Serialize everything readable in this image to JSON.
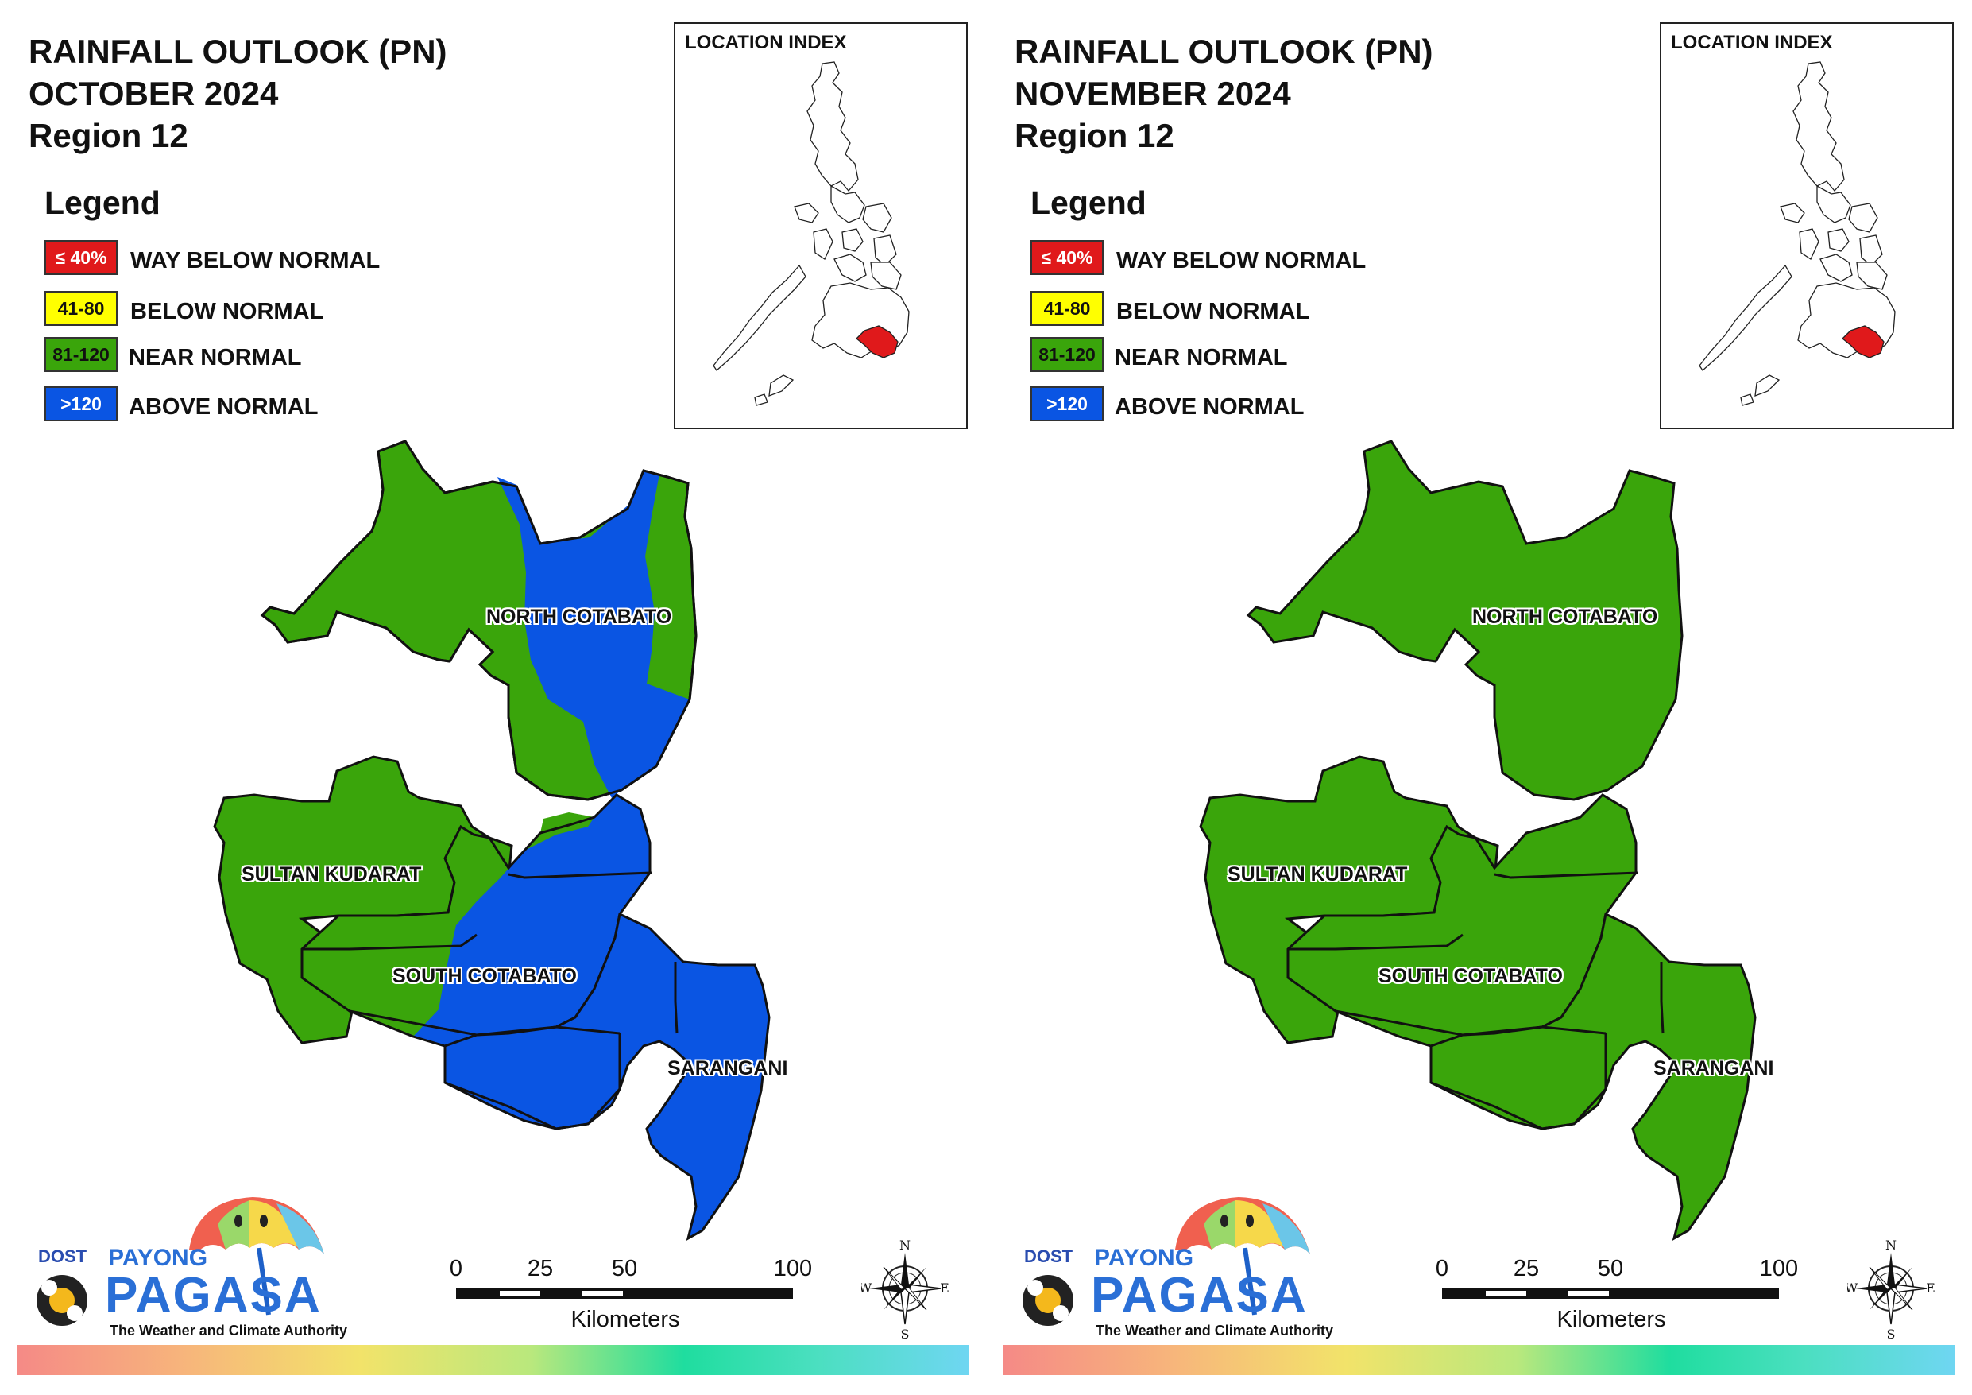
{
  "panels": [
    {
      "title_line1": "RAINFALL OUTLOOK (PN)",
      "title_line2": "OCTOBER 2024",
      "title_line3": "Region 12",
      "provinces": [
        {
          "name": "NORTH COTABATO",
          "category": "near-normal / above-normal"
        },
        {
          "name": "SULTAN KUDARAT",
          "category": "near-normal"
        },
        {
          "name": "SOUTH COTABATO",
          "category": "near-normal / above-normal"
        },
        {
          "name": "SARANGANI",
          "category": "above-normal"
        }
      ]
    },
    {
      "title_line1": "RAINFALL OUTLOOK (PN)",
      "title_line2": "NOVEMBER 2024",
      "title_line3": "Region 12",
      "provinces": [
        {
          "name": "NORTH COTABATO",
          "category": "near-normal"
        },
        {
          "name": "SULTAN KUDARAT",
          "category": "near-normal"
        },
        {
          "name": "SOUTH COTABATO",
          "category": "near-normal"
        },
        {
          "name": "SARANGANI",
          "category": "near-normal"
        }
      ]
    }
  ],
  "legend": {
    "title": "Legend",
    "items": [
      {
        "range": "≤ 40%",
        "label": "WAY BELOW NORMAL",
        "color": "#e0191b",
        "text_color": "#ffffff"
      },
      {
        "range": "41-80",
        "label": "BELOW NORMAL",
        "color": "#ffff00",
        "text_color": "#111111"
      },
      {
        "range": "81-120",
        "label": "NEAR NORMAL",
        "color": "#3aa50b",
        "text_color": "#111111"
      },
      {
        "range": ">120",
        "label": "ABOVE NORMAL",
        "color": "#0a55e3",
        "text_color": "#ffffff"
      }
    ]
  },
  "inset": {
    "title": "LOCATION INDEX",
    "highlight_color": "#e0191b"
  },
  "scale": {
    "ticks": [
      "0",
      "25",
      "50",
      "100"
    ],
    "unit": "Kilometers"
  },
  "compass": {
    "n": "N",
    "s": "S",
    "e": "E",
    "w": "W"
  },
  "logo": {
    "dost": "DOST",
    "payong": "PAYONG",
    "pagasa": "PAGASA",
    "tagline": "The Weather and Climate Authority"
  },
  "colors": {
    "near_normal": "#3aa50b",
    "above_normal": "#0a55e3",
    "border": "#111111"
  }
}
